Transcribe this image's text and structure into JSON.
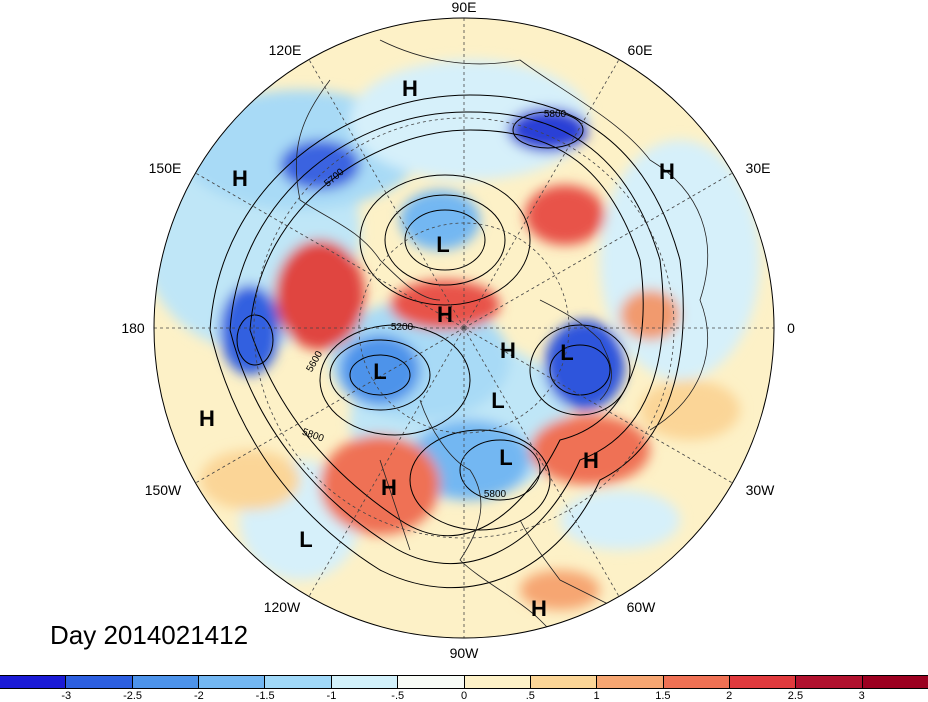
{
  "title": "Day 2014021412",
  "longitude_labels": {
    "top": "90E",
    "upper_left": "120E",
    "upper_right": "60E",
    "left_upper": "150E",
    "right_upper": "30E",
    "left": "180",
    "right": "0",
    "left_lower": "150W",
    "right_lower": "30W",
    "lower_left": "120W",
    "lower_right": "60W",
    "bottom": "90W"
  },
  "pressure_centers": [
    {
      "label": "H",
      "id": "h1"
    },
    {
      "label": "H",
      "id": "h2"
    },
    {
      "label": "H",
      "id": "h3"
    },
    {
      "label": "L",
      "id": "l1"
    },
    {
      "label": "H",
      "id": "h4"
    },
    {
      "label": "L",
      "id": "l2"
    },
    {
      "label": "H",
      "id": "h5"
    },
    {
      "label": "L",
      "id": "l3"
    },
    {
      "label": "H",
      "id": "h6"
    },
    {
      "label": "L",
      "id": "l4"
    },
    {
      "label": "L",
      "id": "l5"
    },
    {
      "label": "H",
      "id": "h7"
    },
    {
      "label": "H",
      "id": "h8"
    },
    {
      "label": "L",
      "id": "l6"
    },
    {
      "label": "H",
      "id": "h9"
    }
  ],
  "contour_labels": [
    "5800",
    "5700",
    "5200",
    "5600",
    "5800",
    "5800"
  ],
  "colorbar": {
    "ticks": [
      "-3",
      "-2.5",
      "-2",
      "-1.5",
      "-1",
      "-.5",
      "0",
      ".5",
      "1",
      "1.5",
      "2",
      "2.5",
      "3"
    ],
    "colors": [
      "#1b1bd6",
      "#2c5fe0",
      "#4d93ea",
      "#73b7f2",
      "#a0d8f8",
      "#d2f1fb",
      "#f7fbf6",
      "#fdf1c7",
      "#fbd597",
      "#f6a672",
      "#ef7154",
      "#e03a3d",
      "#b1112e",
      "#9c0020"
    ]
  }
}
